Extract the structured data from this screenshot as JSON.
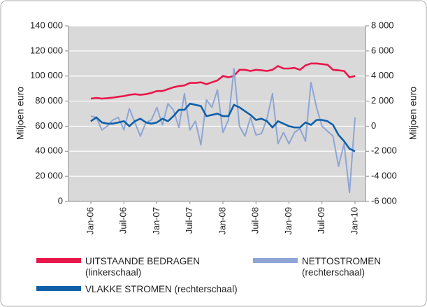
{
  "chart_data": {
    "type": "line",
    "y_label": "Miljoen euro",
    "y2_label": "Miljoen euro",
    "categories": [
      "Jan-06",
      null,
      null,
      null,
      null,
      null,
      "Juil-06",
      null,
      null,
      null,
      null,
      null,
      "Jan-07",
      null,
      null,
      null,
      null,
      null,
      "Juil-07",
      null,
      null,
      null,
      null,
      null,
      "Jan-08",
      null,
      null,
      null,
      null,
      null,
      "Juil-08",
      null,
      null,
      null,
      null,
      null,
      "Jan-09",
      null,
      null,
      null,
      null,
      null,
      "Juil-09",
      null,
      null,
      null,
      null,
      null,
      "Jan-10"
    ],
    "series": [
      {
        "name": "UITSTAANDE BEDRAGEN (linkerschaal)",
        "color": "#e8174a",
        "axis": "y",
        "values": [
          82000,
          82500,
          82000,
          82300,
          82800,
          83500,
          84000,
          85000,
          85500,
          85000,
          85500,
          86500,
          88000,
          88000,
          89500,
          91000,
          92000,
          92500,
          94500,
          94500,
          95000,
          93500,
          95000,
          96500,
          100000,
          99000,
          100000,
          105000,
          105000,
          104000,
          105000,
          104500,
          104000,
          105000,
          108000,
          106000,
          106000,
          106500,
          105000,
          108500,
          110000,
          110000,
          109500,
          109000,
          105000,
          104500,
          104000,
          99000,
          100000
        ]
      },
      {
        "name": "NETTOSTROMEN (rechterschaal)",
        "color": "#8ea5d6",
        "axis": "y2",
        "values": [
          800,
          700,
          -300,
          0,
          500,
          700,
          -300,
          1400,
          300,
          -800,
          300,
          500,
          1500,
          100,
          1800,
          1300,
          -100,
          2600,
          -300,
          400,
          -1500,
          2100,
          1500,
          2900,
          -500,
          500,
          4600,
          0,
          -800,
          700,
          -700,
          -600,
          600,
          2600,
          -1400,
          -500,
          -1400,
          -500,
          -200,
          -1200,
          3500,
          1500,
          0,
          -400,
          -800,
          -3200,
          -1400,
          -5300,
          700
        ]
      },
      {
        "name": "VLAKKE STROMEN (rechterschaal)",
        "color": "#1060a8",
        "axis": "y2",
        "values": [
          400,
          700,
          300,
          200,
          200,
          300,
          400,
          0,
          400,
          600,
          300,
          200,
          300,
          600,
          400,
          800,
          1300,
          1300,
          1800,
          1700,
          1600,
          800,
          900,
          1000,
          800,
          800,
          1700,
          1500,
          1200,
          900,
          500,
          600,
          400,
          -100,
          400,
          200,
          0,
          -100,
          -100,
          300,
          100,
          500,
          500,
          400,
          100,
          -700,
          -1200,
          -1800,
          -2000
        ]
      }
    ],
    "ylim": [
      0,
      140000
    ],
    "yticks": [
      0,
      {
        "value": 20000,
        "label": "20 000"
      },
      {
        "value": 40000,
        "label": "40 000"
      },
      {
        "value": 60000,
        "label": "60 000"
      },
      {
        "value": 80000,
        "label": "80 000"
      },
      {
        "value": 100000,
        "label": "100 000"
      },
      {
        "value": 120000,
        "label": "120 000"
      },
      {
        "value": 140000,
        "label": "140 000"
      }
    ],
    "y2lim": [
      -6000,
      8000
    ],
    "y2ticks": [
      {
        "value": -6000,
        "label": "-6 000"
      },
      {
        "value": -4000,
        "label": "-4 000"
      },
      {
        "value": -2000,
        "label": "-2 000"
      },
      0,
      {
        "value": 2000,
        "label": "2 000"
      },
      {
        "value": 4000,
        "label": "4 000"
      },
      {
        "value": 6000,
        "label": "6 000"
      },
      {
        "value": 8000,
        "label": "8 000"
      }
    ],
    "grid": true,
    "background": "#d9d9d9"
  }
}
